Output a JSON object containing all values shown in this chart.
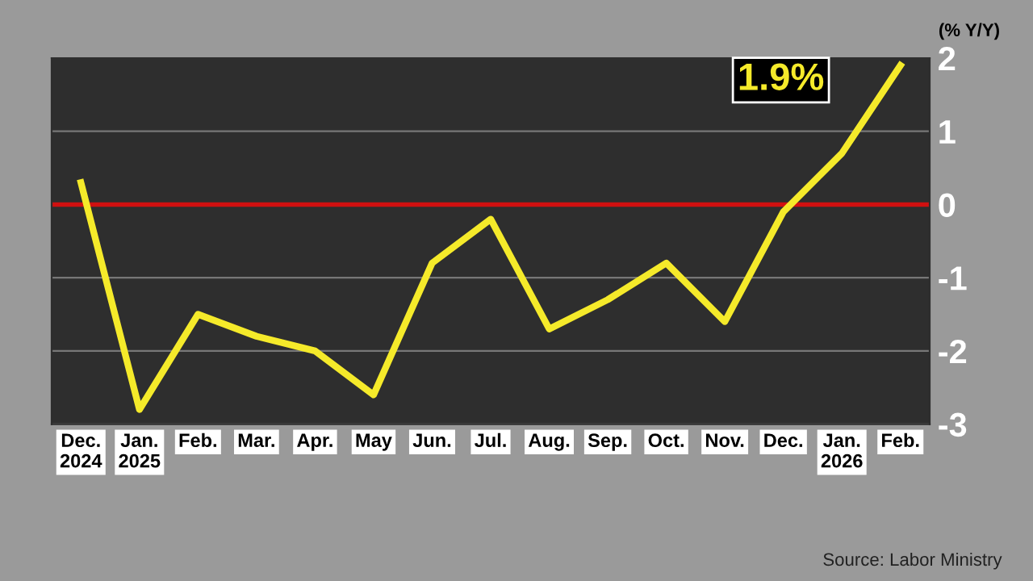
{
  "chart_data": {
    "type": "line",
    "ylabel": "(% Y/Y)",
    "categories": [
      "Dec.\n2024",
      "Jan.\n2025",
      "Feb.",
      "Mar.",
      "Apr.",
      "May",
      "Jun.",
      "Jul.",
      "Aug.",
      "Sep.",
      "Oct.",
      "Nov.",
      "Dec.",
      "Jan.\n2026",
      "Feb."
    ],
    "series": [
      {
        "color": "#f5ea2a",
        "values": [
          0.3,
          -2.8,
          -1.5,
          -1.8,
          -2.0,
          -2.6,
          -0.8,
          -0.2,
          -1.7,
          -1.3,
          -0.8,
          -1.6,
          -0.1,
          0.7,
          1.9
        ]
      }
    ],
    "ylim": [
      -3,
      2
    ],
    "yticks": [
      -3,
      -2,
      -1,
      0,
      1,
      2
    ],
    "grid": "y",
    "legend": false,
    "marker": "none",
    "line_style": "solid",
    "ref_lines": [
      {
        "axis": "y",
        "value": 0,
        "color": "#d01010"
      }
    ],
    "annotations": [
      "1.9%",
      "Source: Labor Ministry"
    ]
  }
}
